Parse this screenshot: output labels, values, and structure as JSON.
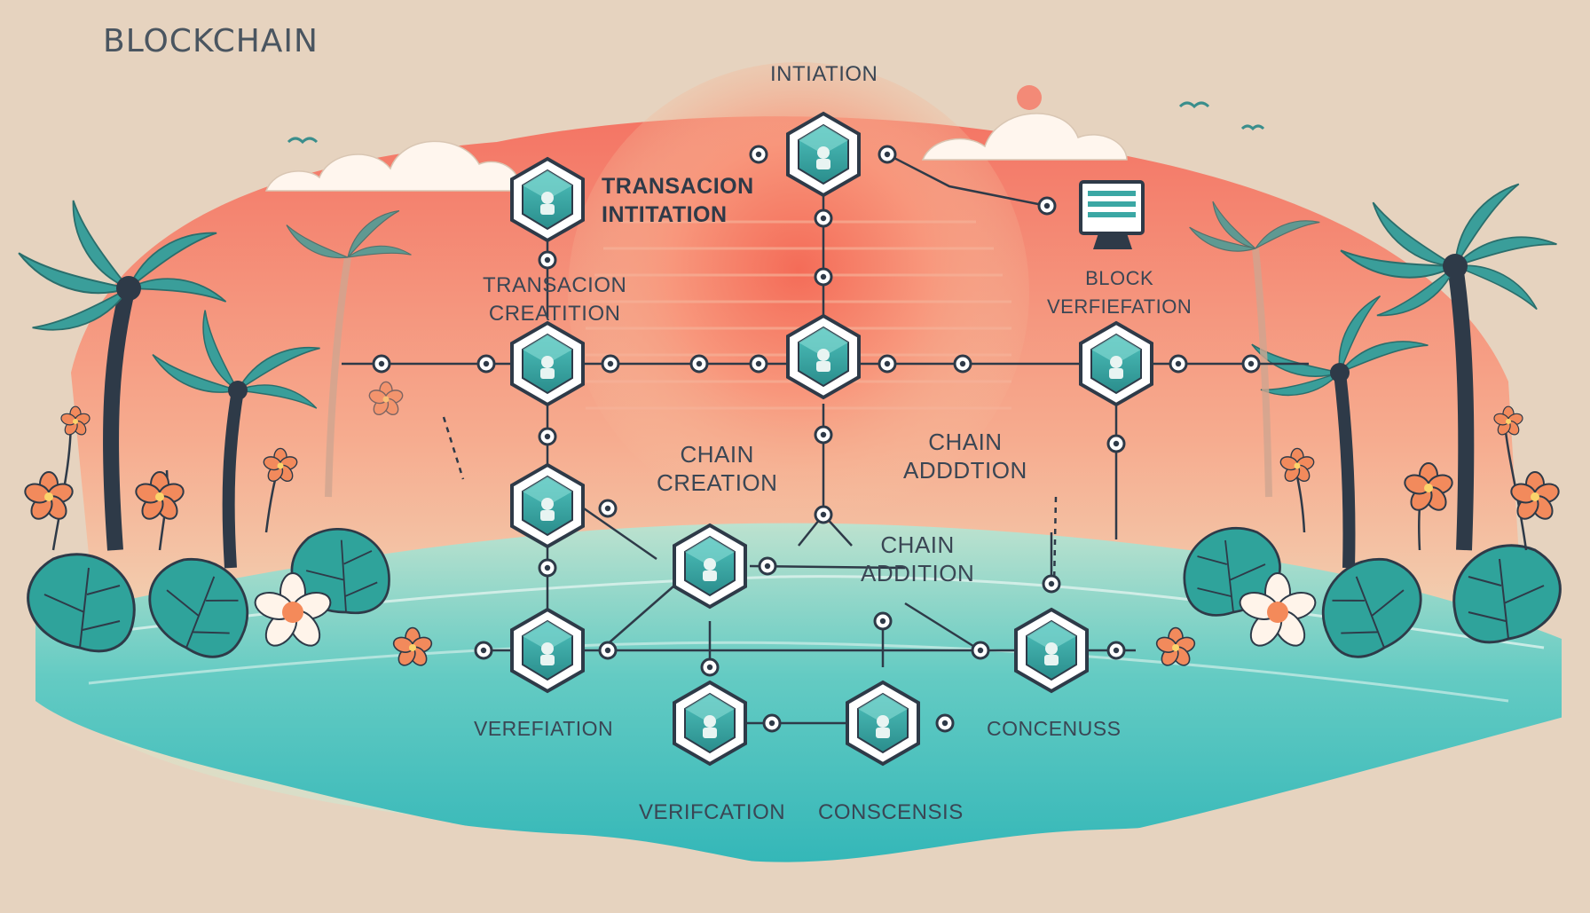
{
  "diagram": {
    "title": "BLOCKCHAIN",
    "labels": {
      "initiation": "INTIATION",
      "transaction_initiation_1": "TRANSACION",
      "transaction_initiation_2": "INTITATION",
      "transaction_creation_1": "TRANSACION",
      "transaction_creation_2": "CREATITION",
      "block_verification_1": "BLOCK",
      "block_verification_2": "VERFIEFATION",
      "chain_creation_1": "CHAIN",
      "chain_creation_2": "CREATION",
      "chain_addition_upper_1": "CHAIN",
      "chain_addition_upper_2": "ADDDTION",
      "chain_addition_lower_1": "CHAIN",
      "chain_addition_lower_2": "ADDITION",
      "verification_left": "VEREFIATION",
      "consensus_right": "CONCENUSS",
      "verification_bottom": "VERIFCATION",
      "consensus_bottom": "CONSCENSIS"
    },
    "colors": {
      "background": "#e6d3bf",
      "sun": "#f47b68",
      "sea": "#48c2c0",
      "node_fill": "#3ba7a4",
      "node_ring": "#2e3a48",
      "palm_leaf": "#3a9e9a",
      "flower": "#f28a5c"
    }
  }
}
